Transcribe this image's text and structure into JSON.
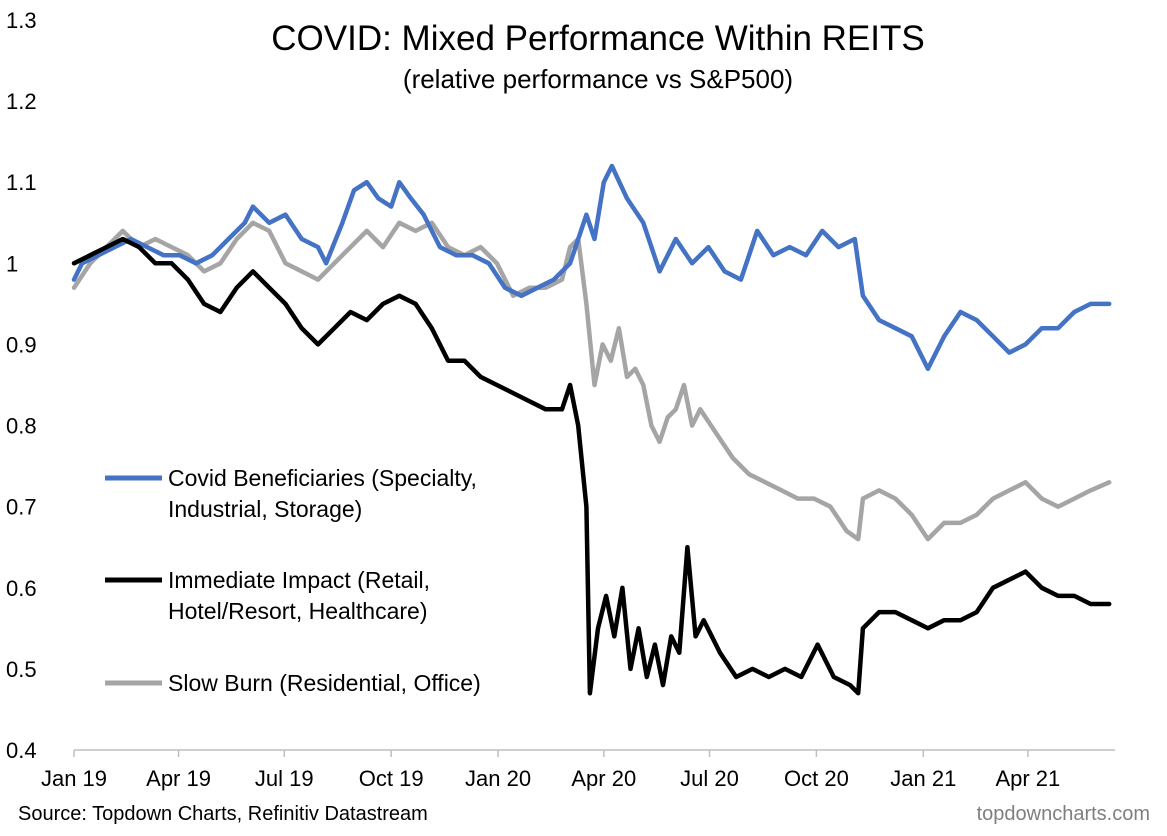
{
  "chart_data": {
    "type": "line",
    "title": "COVID: Mixed Performance Within REITS",
    "subtitle": "(relative performance vs S&P500)",
    "xlabel": "",
    "ylabel": "",
    "ylim": [
      0.4,
      1.3
    ],
    "yticks": [
      "0.4",
      "0.5",
      "0.6",
      "0.7",
      "0.8",
      "0.9",
      "1",
      "1.1",
      "1.2",
      "1.3"
    ],
    "xlim": [
      "2019-01-01",
      "2021-06-15"
    ],
    "xticks": [
      {
        "label": "Jan 19",
        "date": "2019-01-01"
      },
      {
        "label": "Apr 19",
        "date": "2019-04-01"
      },
      {
        "label": "Jul 19",
        "date": "2019-07-01"
      },
      {
        "label": "Oct 19",
        "date": "2019-10-01"
      },
      {
        "label": "Jan 20",
        "date": "2020-01-01"
      },
      {
        "label": "Apr 20",
        "date": "2020-04-01"
      },
      {
        "label": "Jul 20",
        "date": "2020-07-01"
      },
      {
        "label": "Oct 20",
        "date": "2020-10-01"
      },
      {
        "label": "Jan 21",
        "date": "2021-01-01"
      },
      {
        "label": "Apr 21",
        "date": "2021-04-01"
      }
    ],
    "grid": false,
    "legend_position": "center-left",
    "source": "Source: Topdown Charts, Refinitiv Datastream",
    "watermark": "topdowncharts.com",
    "series": [
      {
        "name": "Covid Beneficiaries (Specialty, Industrial, Storage)",
        "legend_lines": [
          "Covid Beneficiaries (Specialty,",
          "Industrial, Storage)"
        ],
        "color": "#4472c4",
        "points": [
          [
            "2019-01-01",
            0.98
          ],
          [
            "2019-01-08",
            1.0
          ],
          [
            "2019-01-22",
            1.01
          ],
          [
            "2019-02-05",
            1.02
          ],
          [
            "2019-02-19",
            1.03
          ],
          [
            "2019-03-05",
            1.02
          ],
          [
            "2019-03-19",
            1.01
          ],
          [
            "2019-04-02",
            1.01
          ],
          [
            "2019-04-16",
            1.0
          ],
          [
            "2019-04-30",
            1.01
          ],
          [
            "2019-05-14",
            1.03
          ],
          [
            "2019-05-28",
            1.05
          ],
          [
            "2019-06-04",
            1.07
          ],
          [
            "2019-06-18",
            1.05
          ],
          [
            "2019-07-02",
            1.06
          ],
          [
            "2019-07-16",
            1.03
          ],
          [
            "2019-07-30",
            1.02
          ],
          [
            "2019-08-06",
            1.0
          ],
          [
            "2019-08-20",
            1.05
          ],
          [
            "2019-08-30",
            1.09
          ],
          [
            "2019-09-10",
            1.1
          ],
          [
            "2019-09-20",
            1.08
          ],
          [
            "2019-10-01",
            1.07
          ],
          [
            "2019-10-08",
            1.1
          ],
          [
            "2019-10-18",
            1.08
          ],
          [
            "2019-10-29",
            1.06
          ],
          [
            "2019-11-12",
            1.02
          ],
          [
            "2019-11-26",
            1.01
          ],
          [
            "2019-12-10",
            1.01
          ],
          [
            "2019-12-24",
            1.0
          ],
          [
            "2020-01-07",
            0.97
          ],
          [
            "2020-01-21",
            0.96
          ],
          [
            "2020-02-04",
            0.97
          ],
          [
            "2020-02-18",
            0.98
          ],
          [
            "2020-03-03",
            1.0
          ],
          [
            "2020-03-17",
            1.06
          ],
          [
            "2020-03-24",
            1.03
          ],
          [
            "2020-04-01",
            1.1
          ],
          [
            "2020-04-08",
            1.12
          ],
          [
            "2020-04-21",
            1.08
          ],
          [
            "2020-05-05",
            1.05
          ],
          [
            "2020-05-19",
            0.99
          ],
          [
            "2020-06-02",
            1.03
          ],
          [
            "2020-06-16",
            1.0
          ],
          [
            "2020-06-30",
            1.02
          ],
          [
            "2020-07-14",
            0.99
          ],
          [
            "2020-07-28",
            0.98
          ],
          [
            "2020-08-11",
            1.04
          ],
          [
            "2020-08-25",
            1.01
          ],
          [
            "2020-09-08",
            1.02
          ],
          [
            "2020-09-22",
            1.01
          ],
          [
            "2020-10-06",
            1.04
          ],
          [
            "2020-10-20",
            1.02
          ],
          [
            "2020-11-03",
            1.03
          ],
          [
            "2020-11-10",
            0.96
          ],
          [
            "2020-11-24",
            0.93
          ],
          [
            "2020-12-08",
            0.92
          ],
          [
            "2020-12-22",
            0.91
          ],
          [
            "2021-01-05",
            0.87
          ],
          [
            "2021-01-19",
            0.91
          ],
          [
            "2021-02-02",
            0.94
          ],
          [
            "2021-02-16",
            0.93
          ],
          [
            "2021-03-02",
            0.91
          ],
          [
            "2021-03-16",
            0.89
          ],
          [
            "2021-03-30",
            0.9
          ],
          [
            "2021-04-13",
            0.92
          ],
          [
            "2021-04-27",
            0.92
          ],
          [
            "2021-05-11",
            0.94
          ],
          [
            "2021-05-25",
            0.95
          ],
          [
            "2021-06-10",
            0.95
          ]
        ]
      },
      {
        "name": "Immediate Impact (Retail, Hotel/Resort, Healthcare)",
        "legend_lines": [
          "Immediate Impact (Retail,",
          "Hotel/Resort, Healthcare)"
        ],
        "color": "#000000",
        "points": [
          [
            "2019-01-01",
            1.0
          ],
          [
            "2019-01-15",
            1.01
          ],
          [
            "2019-01-29",
            1.02
          ],
          [
            "2019-02-12",
            1.03
          ],
          [
            "2019-02-26",
            1.02
          ],
          [
            "2019-03-12",
            1.0
          ],
          [
            "2019-03-26",
            1.0
          ],
          [
            "2019-04-09",
            0.98
          ],
          [
            "2019-04-23",
            0.95
          ],
          [
            "2019-05-07",
            0.94
          ],
          [
            "2019-05-21",
            0.97
          ],
          [
            "2019-06-04",
            0.99
          ],
          [
            "2019-06-18",
            0.97
          ],
          [
            "2019-07-02",
            0.95
          ],
          [
            "2019-07-16",
            0.92
          ],
          [
            "2019-07-30",
            0.9
          ],
          [
            "2019-08-13",
            0.92
          ],
          [
            "2019-08-27",
            0.94
          ],
          [
            "2019-09-10",
            0.93
          ],
          [
            "2019-09-24",
            0.95
          ],
          [
            "2019-10-08",
            0.96
          ],
          [
            "2019-10-22",
            0.95
          ],
          [
            "2019-11-05",
            0.92
          ],
          [
            "2019-11-19",
            0.88
          ],
          [
            "2019-12-03",
            0.88
          ],
          [
            "2019-12-17",
            0.86
          ],
          [
            "2019-12-31",
            0.85
          ],
          [
            "2020-01-14",
            0.84
          ],
          [
            "2020-01-28",
            0.83
          ],
          [
            "2020-02-11",
            0.82
          ],
          [
            "2020-02-25",
            0.82
          ],
          [
            "2020-03-03",
            0.85
          ],
          [
            "2020-03-10",
            0.8
          ],
          [
            "2020-03-17",
            0.7
          ],
          [
            "2020-03-20",
            0.47
          ],
          [
            "2020-03-27",
            0.55
          ],
          [
            "2020-04-03",
            0.59
          ],
          [
            "2020-04-10",
            0.54
          ],
          [
            "2020-04-17",
            0.6
          ],
          [
            "2020-04-24",
            0.5
          ],
          [
            "2020-05-01",
            0.55
          ],
          [
            "2020-05-08",
            0.49
          ],
          [
            "2020-05-15",
            0.53
          ],
          [
            "2020-05-22",
            0.48
          ],
          [
            "2020-05-29",
            0.54
          ],
          [
            "2020-06-05",
            0.52
          ],
          [
            "2020-06-12",
            0.65
          ],
          [
            "2020-06-19",
            0.54
          ],
          [
            "2020-06-26",
            0.56
          ],
          [
            "2020-07-10",
            0.52
          ],
          [
            "2020-07-24",
            0.49
          ],
          [
            "2020-08-07",
            0.5
          ],
          [
            "2020-08-21",
            0.49
          ],
          [
            "2020-09-04",
            0.5
          ],
          [
            "2020-09-18",
            0.49
          ],
          [
            "2020-10-02",
            0.53
          ],
          [
            "2020-10-16",
            0.49
          ],
          [
            "2020-10-30",
            0.48
          ],
          [
            "2020-11-06",
            0.47
          ],
          [
            "2020-11-10",
            0.55
          ],
          [
            "2020-11-24",
            0.57
          ],
          [
            "2020-12-08",
            0.57
          ],
          [
            "2020-12-22",
            0.56
          ],
          [
            "2021-01-05",
            0.55
          ],
          [
            "2021-01-19",
            0.56
          ],
          [
            "2021-02-02",
            0.56
          ],
          [
            "2021-02-16",
            0.57
          ],
          [
            "2021-03-02",
            0.6
          ],
          [
            "2021-03-16",
            0.61
          ],
          [
            "2021-03-30",
            0.62
          ],
          [
            "2021-04-13",
            0.6
          ],
          [
            "2021-04-27",
            0.59
          ],
          [
            "2021-05-11",
            0.59
          ],
          [
            "2021-05-25",
            0.58
          ],
          [
            "2021-06-10",
            0.58
          ]
        ]
      },
      {
        "name": "Slow Burn (Residential, Office)",
        "legend_lines": [
          "Slow Burn (Residential, Office)"
        ],
        "color": "#a5a5a5",
        "points": [
          [
            "2019-01-01",
            0.97
          ],
          [
            "2019-01-15",
            1.0
          ],
          [
            "2019-01-29",
            1.02
          ],
          [
            "2019-02-12",
            1.04
          ],
          [
            "2019-02-26",
            1.02
          ],
          [
            "2019-03-12",
            1.03
          ],
          [
            "2019-03-26",
            1.02
          ],
          [
            "2019-04-09",
            1.01
          ],
          [
            "2019-04-23",
            0.99
          ],
          [
            "2019-05-07",
            1.0
          ],
          [
            "2019-05-21",
            1.03
          ],
          [
            "2019-06-04",
            1.05
          ],
          [
            "2019-06-18",
            1.04
          ],
          [
            "2019-07-02",
            1.0
          ],
          [
            "2019-07-16",
            0.99
          ],
          [
            "2019-07-30",
            0.98
          ],
          [
            "2019-08-13",
            1.0
          ],
          [
            "2019-08-27",
            1.02
          ],
          [
            "2019-09-10",
            1.04
          ],
          [
            "2019-09-24",
            1.02
          ],
          [
            "2019-10-08",
            1.05
          ],
          [
            "2019-10-22",
            1.04
          ],
          [
            "2019-11-05",
            1.05
          ],
          [
            "2019-11-19",
            1.02
          ],
          [
            "2019-12-03",
            1.01
          ],
          [
            "2019-12-17",
            1.02
          ],
          [
            "2019-12-31",
            1.0
          ],
          [
            "2020-01-14",
            0.96
          ],
          [
            "2020-01-28",
            0.97
          ],
          [
            "2020-02-11",
            0.97
          ],
          [
            "2020-02-25",
            0.98
          ],
          [
            "2020-03-03",
            1.02
          ],
          [
            "2020-03-10",
            1.03
          ],
          [
            "2020-03-17",
            0.95
          ],
          [
            "2020-03-24",
            0.85
          ],
          [
            "2020-03-31",
            0.9
          ],
          [
            "2020-04-07",
            0.88
          ],
          [
            "2020-04-14",
            0.92
          ],
          [
            "2020-04-21",
            0.86
          ],
          [
            "2020-04-28",
            0.87
          ],
          [
            "2020-05-05",
            0.85
          ],
          [
            "2020-05-12",
            0.8
          ],
          [
            "2020-05-19",
            0.78
          ],
          [
            "2020-05-26",
            0.81
          ],
          [
            "2020-06-02",
            0.82
          ],
          [
            "2020-06-09",
            0.85
          ],
          [
            "2020-06-16",
            0.8
          ],
          [
            "2020-06-23",
            0.82
          ],
          [
            "2020-07-07",
            0.79
          ],
          [
            "2020-07-21",
            0.76
          ],
          [
            "2020-08-04",
            0.74
          ],
          [
            "2020-08-18",
            0.73
          ],
          [
            "2020-09-01",
            0.72
          ],
          [
            "2020-09-15",
            0.71
          ],
          [
            "2020-09-29",
            0.71
          ],
          [
            "2020-10-13",
            0.7
          ],
          [
            "2020-10-27",
            0.67
          ],
          [
            "2020-11-06",
            0.66
          ],
          [
            "2020-11-10",
            0.71
          ],
          [
            "2020-11-24",
            0.72
          ],
          [
            "2020-12-08",
            0.71
          ],
          [
            "2020-12-22",
            0.69
          ],
          [
            "2021-01-05",
            0.66
          ],
          [
            "2021-01-19",
            0.68
          ],
          [
            "2021-02-02",
            0.68
          ],
          [
            "2021-02-16",
            0.69
          ],
          [
            "2021-03-02",
            0.71
          ],
          [
            "2021-03-16",
            0.72
          ],
          [
            "2021-03-30",
            0.73
          ],
          [
            "2021-04-13",
            0.71
          ],
          [
            "2021-04-27",
            0.7
          ],
          [
            "2021-05-11",
            0.71
          ],
          [
            "2021-05-25",
            0.72
          ],
          [
            "2021-06-10",
            0.73
          ]
        ]
      }
    ]
  }
}
